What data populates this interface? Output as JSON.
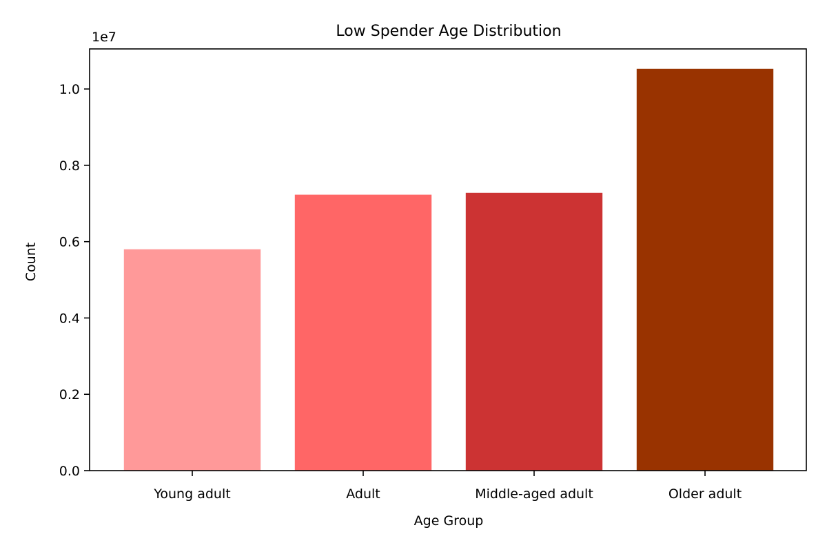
{
  "chart_data": {
    "type": "bar",
    "title": "Low Spender Age Distribution",
    "xlabel": "Age Group",
    "ylabel": "Count",
    "y_scale_label": "1e7",
    "categories": [
      "Young adult",
      "Adult",
      "Middle-aged adult",
      "Older adult"
    ],
    "values": [
      5800000,
      7230000,
      7280000,
      10530000
    ],
    "colors": [
      "#ff9999",
      "#ff6666",
      "#cc3333",
      "#993300"
    ],
    "ylim": [
      0,
      11050000
    ],
    "yticks": [
      0,
      2000000,
      4000000,
      6000000,
      8000000,
      10000000
    ],
    "ytick_labels": [
      "0.0",
      "0.2",
      "0.4",
      "0.6",
      "0.8",
      "1.0"
    ],
    "grid": false,
    "legend": false
  }
}
